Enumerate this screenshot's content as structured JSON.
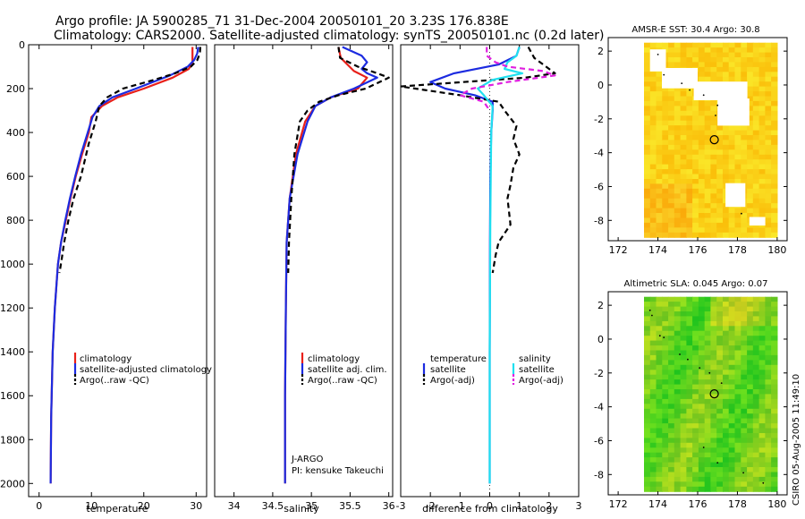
{
  "title": {
    "line1": "Argo profile: JA 5900285_71 31-Dec-2004 20050101_20 3.23S 176.838E",
    "line2": "Climatology: CARS2000. Satellite-adjusted climatology: synTS_20050101.nc (0.2d later)"
  },
  "colors": {
    "clim": "#e8201a",
    "sat": "#1c2be0",
    "argo": "#000000",
    "sat_s": "#20e0f0",
    "argo_s": "#e020e0"
  },
  "chart_data": [
    {
      "id": "temperature",
      "type": "line",
      "xlabel": "temperature",
      "ylabel": "",
      "xlim": [
        -2,
        32
      ],
      "ylim": [
        2060,
        0
      ],
      "xticks": [
        "0",
        "10",
        "20",
        "30"
      ],
      "yticks": [
        "0",
        "200",
        "400",
        "600",
        "800",
        "1000",
        "1200",
        "1400",
        "1600",
        "1800",
        "2000"
      ],
      "legend": [
        "climatology",
        "satellite-adjusted climatology",
        "Argo(..raw -QC)"
      ],
      "series": [
        {
          "name": "climatology",
          "color": "#e8201a",
          "dash": false,
          "x": [
            29.3,
            29.3,
            29.3,
            28.6,
            25.5,
            20,
            15,
            12,
            10,
            9.5,
            8.2,
            7,
            6,
            5.1,
            4.2,
            3.6,
            3,
            2.6,
            2.3,
            2.2
          ],
          "y": [
            10,
            50,
            80,
            110,
            150,
            200,
            240,
            280,
            330,
            400,
            500,
            600,
            700,
            800,
            900,
            1000,
            1200,
            1400,
            1700,
            2000
          ]
        },
        {
          "name": "satellite-adjusted climatology",
          "color": "#1c2be0",
          "dash": false,
          "x": [
            30.4,
            30.2,
            29.6,
            28.4,
            25,
            18.5,
            14,
            11.5,
            10.2,
            9.3,
            8,
            6.9,
            5.9,
            5,
            4.2,
            3.6,
            3,
            2.6,
            2.3,
            2.2
          ],
          "y": [
            10,
            40,
            70,
            100,
            140,
            200,
            240,
            280,
            330,
            400,
            500,
            600,
            700,
            800,
            900,
            1000,
            1200,
            1400,
            1700,
            2000
          ]
        },
        {
          "name": "Argo(..raw -QC)",
          "color": "#000000",
          "dash": true,
          "x": [
            30.8,
            30.7,
            30.2,
            29,
            26,
            22,
            16,
            13,
            11.5,
            10.8,
            9.5,
            8,
            6.6,
            5.6,
            4.8,
            4.3,
            3.9
          ],
          "y": [
            10,
            40,
            70,
            100,
            130,
            160,
            200,
            240,
            280,
            350,
            450,
            600,
            700,
            800,
            900,
            980,
            1040
          ]
        }
      ]
    },
    {
      "id": "salinity",
      "type": "line",
      "xlabel": "salinity",
      "ylabel": "",
      "xlim": [
        33.75,
        36.05
      ],
      "ylim": [
        2060,
        0
      ],
      "xticks": [
        "34",
        "34.5",
        "35",
        "35.5",
        "36"
      ],
      "legend": [
        "climatology",
        "satellite adj. clim.",
        "Argo(..raw -QC)"
      ],
      "annotations": [
        "J-ARGO",
        "PI: kensuke Takeuchi"
      ],
      "series": [
        {
          "name": "climatology",
          "color": "#e8201a",
          "dash": false,
          "x": [
            35.35,
            35.38,
            35.55,
            35.72,
            35.6,
            35.25,
            35.05,
            34.92,
            34.8,
            34.72,
            34.68,
            34.67,
            34.66,
            34.66
          ],
          "y": [
            10,
            60,
            120,
            150,
            200,
            240,
            280,
            350,
            500,
            700,
            900,
            1200,
            1600,
            2000
          ]
        },
        {
          "name": "satellite adj. clim.",
          "color": "#1c2be0",
          "dash": false,
          "x": [
            35.4,
            35.65,
            35.72,
            35.65,
            35.72,
            35.85,
            35.55,
            35.25,
            35.05,
            34.95,
            34.82,
            34.72,
            34.68,
            34.67,
            34.66,
            34.66
          ],
          "y": [
            10,
            50,
            80,
            110,
            130,
            150,
            200,
            240,
            280,
            350,
            500,
            700,
            900,
            1200,
            1600,
            2000
          ]
        },
        {
          "name": "Argo(..raw -QC)",
          "color": "#000000",
          "dash": true,
          "x": [
            35.35,
            35.37,
            35.6,
            35.85,
            36.0,
            35.7,
            35.35,
            35.1,
            34.95,
            34.85,
            34.78,
            34.74,
            34.71,
            34.7
          ],
          "y": [
            10,
            60,
            100,
            130,
            150,
            200,
            230,
            260,
            300,
            350,
            500,
            700,
            900,
            1040
          ]
        }
      ]
    },
    {
      "id": "difference",
      "type": "line",
      "xlabel": "difference from climatology",
      "ylabel": "",
      "xlim": [
        -3,
        3
      ],
      "ylim": [
        2060,
        0
      ],
      "xticks": [
        "-3",
        "-2",
        "-1",
        "0",
        "1",
        "2",
        "3"
      ],
      "legend": [
        "temperature",
        "satellite",
        "Argo(-adj)",
        "salinity",
        "satellite",
        "Argo(-adj)"
      ],
      "series": [
        {
          "name": "temperature satellite",
          "color": "#1c2be0",
          "dash": false,
          "x": [
            1.0,
            0.9,
            0.3,
            -1.2,
            -2.0,
            -1.5,
            -0.5,
            0.1,
            0.1,
            0.05,
            0.02,
            0.01,
            0.0,
            0.0
          ],
          "y": [
            10,
            50,
            90,
            130,
            170,
            200,
            230,
            260,
            300,
            400,
            600,
            900,
            1400,
            2000
          ]
        },
        {
          "name": "temperature Argo(-adj)",
          "color": "#000000",
          "dash": true,
          "x": [
            1.3,
            1.5,
            2.2,
            1.2,
            -3.0,
            -1.0,
            0.3,
            0.5,
            0.9,
            0.8,
            1.0,
            0.8,
            0.7,
            0.6,
            0.7,
            0.3,
            0.2,
            0.1
          ],
          "y": [
            10,
            60,
            130,
            150,
            190,
            230,
            260,
            300,
            370,
            430,
            500,
            560,
            640,
            700,
            820,
            900,
            960,
            1040
          ]
        },
        {
          "name": "salinity satellite",
          "color": "#20e0f0",
          "dash": false,
          "x": [
            1.0,
            0.9,
            0.6,
            0.5,
            1.1,
            0.1,
            -0.4,
            -0.2,
            0.1,
            0.05,
            0.02,
            0.0,
            0.0
          ],
          "y": [
            10,
            50,
            80,
            110,
            130,
            160,
            200,
            230,
            280,
            400,
            800,
            1400,
            2000
          ]
        },
        {
          "name": "salinity Argo(-adj)",
          "color": "#e020e0",
          "dash": true,
          "x": [
            -0.1,
            -0.1,
            0.2,
            0.6,
            1.8,
            2.2,
            0.6,
            -0.6,
            -1.0,
            -0.2,
            0.0
          ],
          "y": [
            10,
            50,
            80,
            100,
            120,
            140,
            170,
            200,
            230,
            260,
            300
          ]
        }
      ]
    },
    {
      "id": "amsre-sst-map",
      "type": "heatmap",
      "title": "AMSR-E SST: 30.4 Argo: 30.8",
      "xlim": [
        171.5,
        180.5
      ],
      "ylim": [
        -9.2,
        2.8
      ],
      "xticks": [
        "172",
        "174",
        "176",
        "178",
        "180"
      ],
      "yticks": [
        "2",
        "0",
        "-2",
        "-4",
        "-6",
        "-8"
      ],
      "data_lon": [
        173.3,
        180.0
      ],
      "data_lat": [
        -9.0,
        2.5
      ],
      "colorscale": "yellow-orange",
      "profile_location": [
        176.838,
        -3.23
      ]
    },
    {
      "id": "altimetric-sla-map",
      "type": "heatmap",
      "title": "Altimetric SLA: 0.045 Argo: 0.07",
      "xlim": [
        171.5,
        180.5
      ],
      "ylim": [
        -9.2,
        2.8
      ],
      "xticks": [
        "172",
        "174",
        "176",
        "178",
        "180"
      ],
      "yticks": [
        "2",
        "0",
        "-2",
        "-4",
        "-6",
        "-8"
      ],
      "data_lon": [
        173.3,
        180.0
      ],
      "data_lat": [
        -9.0,
        2.5
      ],
      "colorscale": "green-yellow",
      "profile_location": [
        176.838,
        -3.23
      ]
    }
  ],
  "side_label": "CSIRO 05-Aug-2005 11:49:10"
}
